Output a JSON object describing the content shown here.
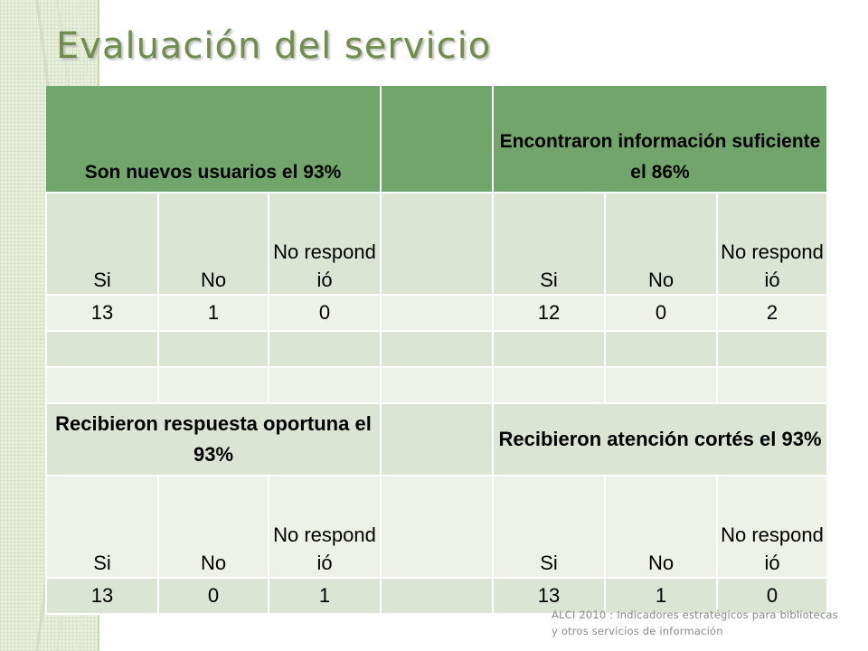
{
  "slide": {
    "title": "Evaluación del servicio",
    "footer": "ALCI 2010 : Indicadores estratégicos para bibliotecas y otros servicios de información"
  },
  "table": {
    "header1": {
      "left": "Son nuevos usuarios el 93%",
      "right": "Encontraron información suficiente el 86%"
    },
    "header2": {
      "left": "Recibieron respuesta oportuna el 93%",
      "right": "Recibieron atención cortés el 93%"
    },
    "col_labels": [
      "Si",
      "No",
      "No respond ió",
      "",
      "Si",
      "No",
      "No respond ió"
    ],
    "row1_values": [
      "13",
      "1",
      "0",
      "",
      "12",
      "0",
      "2"
    ],
    "row2_values": [
      "13",
      "0",
      "1",
      "",
      "13",
      "1",
      "0"
    ]
  },
  "colors": {
    "header_green": "#72a56c",
    "title_green": "#6f8d4c",
    "band_dark": "#dce5d4",
    "band_light": "#edf1e8"
  }
}
